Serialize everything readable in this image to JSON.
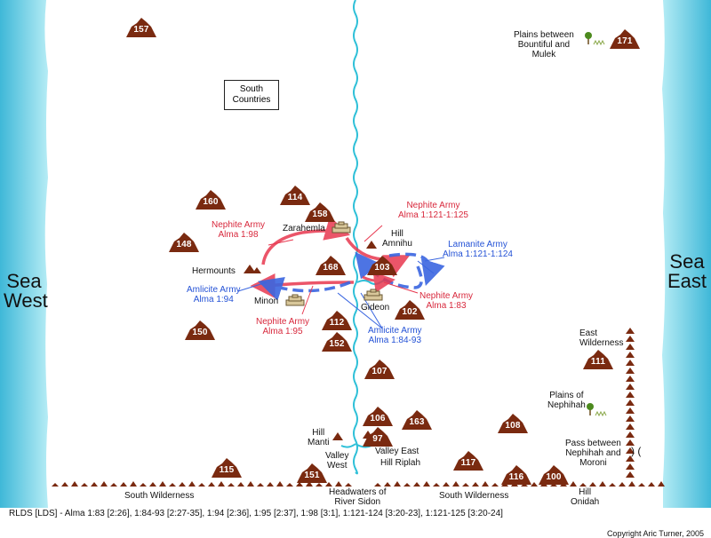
{
  "seas": {
    "west": "Sea\nWest",
    "east": "Sea\nEast"
  },
  "places": {
    "south_countries": "South\nCountries",
    "zarahemla": "Zarahemla",
    "hill_amnihu": "Hill\nAmnihu",
    "hermounts": "Hermounts",
    "minon": "Minon",
    "gideon": "Gideon",
    "plains_bountiful_mulek": "Plains between\nBountiful and\nMulek",
    "east_wilderness": "East\nWilderness",
    "plains_nephihah": "Plains of\nNephihah",
    "pass_nephihah_moroni": "Pass between\nNephihah and\nMoroni",
    "hill_manti": "Hill\nManti",
    "valley_west": "Valley\nWest",
    "valley_east": "Valley East",
    "hill_riplah": "Hill Riplah",
    "south_wilderness_left": "South Wilderness",
    "south_wilderness_right": "South Wilderness",
    "headwaters": "Headwaters of\nRiver Sidon",
    "hill_onidah": "Hill\nOnidah"
  },
  "armies": {
    "nephite_198": "Nephite Army\nAlma 1:98",
    "nephite_121": "Nephite Army\nAlma 1:121-1:125",
    "lamanite_121": "Lamanite Army\nAlma 1:121-1:124",
    "amlicite_194": "Amlicite Army\nAlma 1:94",
    "nephite_183": "Nephite Army\nAlma 1:83",
    "nephite_195": "Nephite Army\nAlma 1:95",
    "amlicite_184": "Amlicite Army\nAlma 1:84-93"
  },
  "hill_numbers": [
    "157",
    "171",
    "160",
    "114",
    "158",
    "148",
    "168",
    "103",
    "112",
    "102",
    "150",
    "152",
    "111",
    "107",
    "106",
    "163",
    "97",
    "108",
    "117",
    "115",
    "151",
    "116",
    "100"
  ],
  "references": "RLDS [LDS] - Alma 1:83 [2:26], 1:84-93 [2:27-35], 1:94 [2:36], 1:95 [2:37], 1:98 [3:1], 1:121-124 [3:20-23], 1:121-125 [3:20-24]",
  "copyright": "Copyright Aric Turner, 2005",
  "colors": {
    "sea": "#5ec8e0",
    "river": "#2fc0d8",
    "hill": "#7a2a10",
    "nephite": "#e8384f",
    "lamanite": "#3a66e0"
  }
}
